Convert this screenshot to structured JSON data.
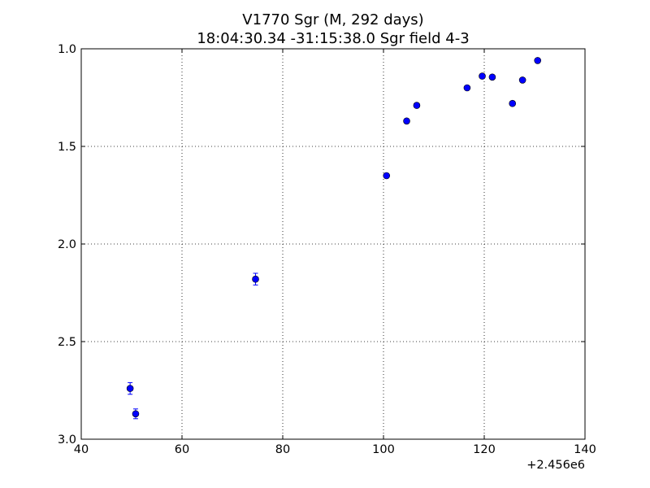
{
  "chart_data": {
    "type": "scatter",
    "title": "V1770 Sgr  (M, 292 days)",
    "subtitle": "18:04:30.34 -31:15:38.0 Sgr field 4-3",
    "xlabel": "",
    "ylabel": "",
    "xlim": [
      40,
      140
    ],
    "ylim": [
      3.0,
      1.0
    ],
    "y_inverted": true,
    "x_ticks": [
      "40",
      "60",
      "80",
      "100",
      "120",
      "140"
    ],
    "y_ticks": [
      "1.0",
      "1.5",
      "2.0",
      "2.5",
      "3.0"
    ],
    "x_offset_label": "+2.456e6",
    "grid": true,
    "grid_style": "dotted",
    "marker_color": "#0000ff",
    "points": [
      {
        "x": 49.7,
        "y": 2.74,
        "err": 0.03
      },
      {
        "x": 50.8,
        "y": 2.87,
        "err": 0.025
      },
      {
        "x": 74.6,
        "y": 2.18,
        "err": 0.03
      },
      {
        "x": 100.6,
        "y": 1.65,
        "err": 0.01
      },
      {
        "x": 104.6,
        "y": 1.37,
        "err": 0.01
      },
      {
        "x": 106.6,
        "y": 1.29,
        "err": 0.01
      },
      {
        "x": 116.6,
        "y": 1.2,
        "err": 0.01
      },
      {
        "x": 119.6,
        "y": 1.14,
        "err": 0.01
      },
      {
        "x": 121.6,
        "y": 1.145,
        "err": 0.01
      },
      {
        "x": 125.6,
        "y": 1.28,
        "err": 0.01
      },
      {
        "x": 127.6,
        "y": 1.16,
        "err": 0.01
      },
      {
        "x": 130.6,
        "y": 1.06,
        "err": 0.01
      }
    ]
  }
}
